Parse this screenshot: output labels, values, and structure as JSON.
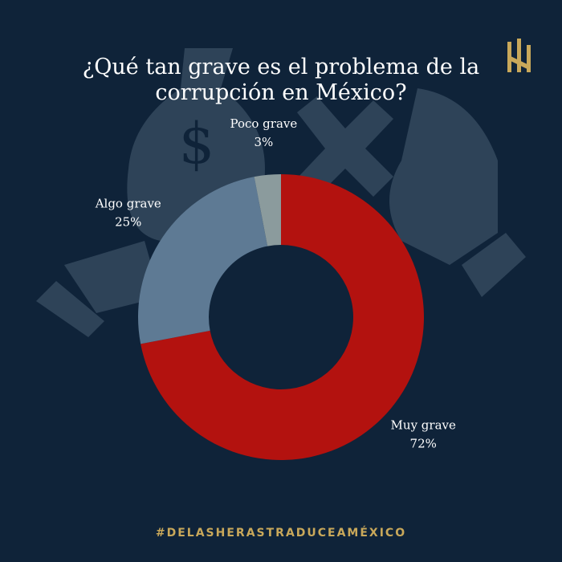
{
  "chart_data": {
    "type": "donut",
    "title": "¿Qué tan grave es el problema de la corrupción en México?",
    "categories": [
      "Muy grave",
      "Algo grave",
      "Poco grave"
    ],
    "values": [
      72,
      25,
      3
    ],
    "value_labels": [
      "72%",
      "25%",
      "3%"
    ],
    "colors": [
      "#b3120f",
      "#5e7a94",
      "#8b9b9d"
    ],
    "footer": "#DELASHERASTRADUCEAMÉXICO"
  }
}
